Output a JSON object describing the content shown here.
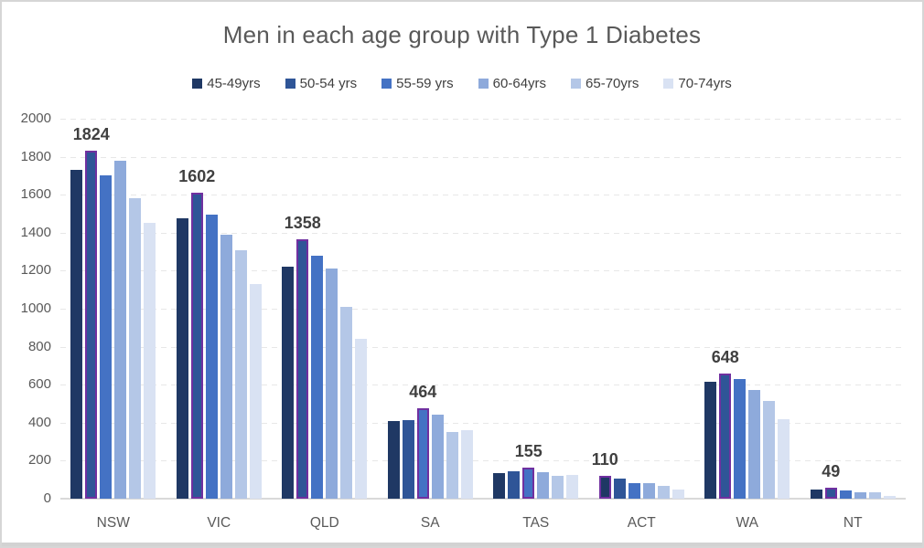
{
  "chart_data": {
    "type": "bar",
    "title": "Men in each age group with Type 1 Diabetes",
    "categories": [
      "NSW",
      "VIC",
      "QLD",
      "SA",
      "TAS",
      "ACT",
      "WA",
      "NT"
    ],
    "series": [
      {
        "name": "45-49yrs",
        "color": "#1F3864",
        "values": [
          1730,
          1475,
          1220,
          410,
          135,
          110,
          615,
          48
        ]
      },
      {
        "name": "50-54 yrs",
        "color": "#2F5597",
        "values": [
          1824,
          1602,
          1358,
          415,
          145,
          104,
          648,
          49
        ]
      },
      {
        "name": "55-59 yrs",
        "color": "#4472C4",
        "values": [
          1700,
          1495,
          1280,
          464,
          155,
          80,
          630,
          45
        ]
      },
      {
        "name": "60-64yrs",
        "color": "#8EAADB",
        "values": [
          1780,
          1390,
          1210,
          440,
          138,
          82,
          570,
          35
        ]
      },
      {
        "name": "65-70yrs",
        "color": "#B4C7E7",
        "values": [
          1580,
          1310,
          1010,
          350,
          120,
          65,
          515,
          33
        ]
      },
      {
        "name": "70-74yrs",
        "color": "#D9E2F3",
        "values": [
          1450,
          1130,
          840,
          360,
          125,
          50,
          420,
          15
        ]
      }
    ],
    "yticks": [
      0,
      200,
      400,
      600,
      800,
      1000,
      1200,
      1400,
      1600,
      1800,
      2000
    ],
    "ylim": [
      0,
      2000
    ],
    "grid": "horizontal-dashed",
    "legend_position": "top",
    "max_value_labels": {
      "values": [
        1824,
        1602,
        1358,
        464,
        155,
        110,
        648,
        49
      ],
      "series_index": [
        1,
        1,
        1,
        2,
        2,
        0,
        1,
        1
      ]
    },
    "highlight_outline_color": "#7030A0",
    "colors": {
      "title_text": "#595959",
      "axis_text": "#595959",
      "legend_text": "#404040",
      "data_label_text": "#404040",
      "gridline": "#e7e7e7",
      "axis_line": "#d9d9d9"
    }
  }
}
